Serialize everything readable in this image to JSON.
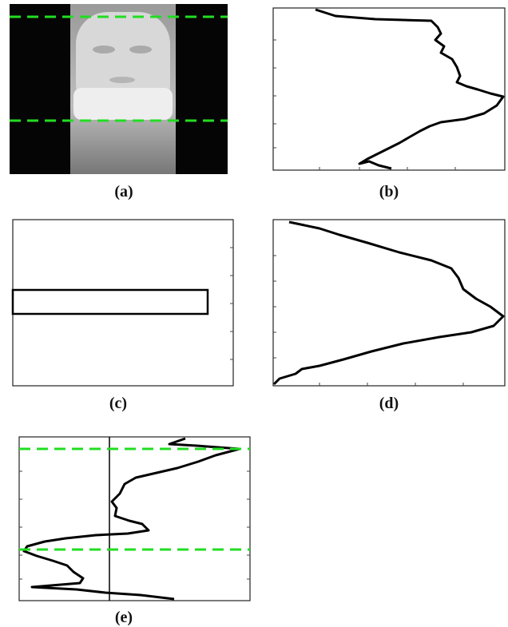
{
  "captions": {
    "a": "(a)",
    "b": "(b)",
    "c": "(c)",
    "d": "(d)",
    "e": "(e)"
  }
}
